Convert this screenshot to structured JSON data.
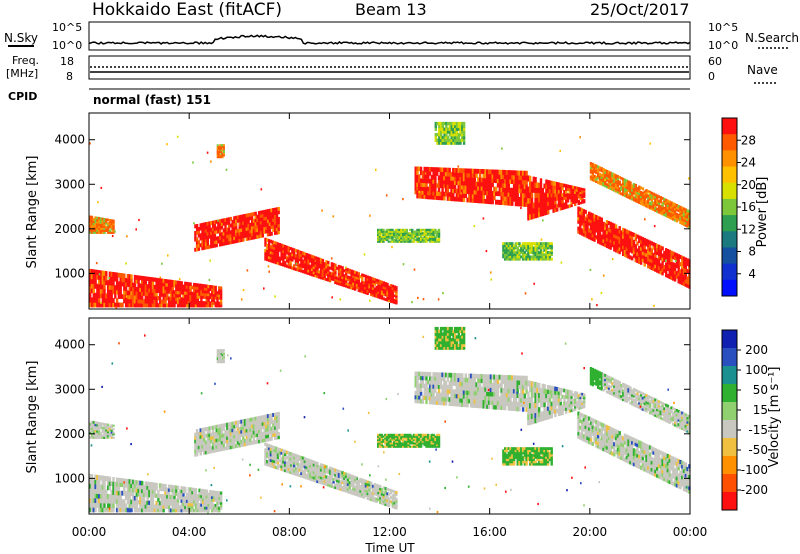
{
  "header": {
    "title": "Hokkaido East (fitACF)",
    "beam": "Beam 13",
    "date": "25/Oct/2017"
  },
  "top_panels": {
    "nsky": {
      "label": "N.Sky",
      "right_label": "N.Search",
      "ticks_left": [
        "10^5",
        "10^0"
      ],
      "ticks_right": [
        "10^5",
        "10^0"
      ]
    },
    "freq": {
      "label_line1": "Freq.",
      "label_line2": "[MHz]",
      "ticks_left": [
        "18",
        "8"
      ],
      "right_label": "Nave",
      "ticks_right": [
        "60",
        "0"
      ]
    },
    "cpid": {
      "label": "CPID",
      "value": "normal (fast) 151"
    }
  },
  "chart_data": [
    {
      "type": "heatmap",
      "name": "power",
      "ylabel": "Slant Range [km]",
      "ytick_labels": [
        "1000",
        "2000",
        "3000",
        "4000"
      ],
      "ylim": [
        200,
        4600
      ],
      "xlim": [
        0,
        24
      ],
      "x_tick_labels": [
        "00:00",
        "04:00",
        "08:00",
        "12:00",
        "16:00",
        "20:00",
        "00:00"
      ],
      "colorbar": {
        "label": "Power [dB]",
        "tick_labels": [
          "28",
          "24",
          "20",
          "16",
          "12",
          "8",
          "4"
        ],
        "colors": [
          "#ff1010",
          "#ff5a00",
          "#ff9000",
          "#ffc000",
          "#d8e000",
          "#7cc83a",
          "#2e9e50",
          "#1a7a80",
          "#1550a0",
          "#1030d0",
          "#0010ff"
        ]
      }
    },
    {
      "type": "heatmap",
      "name": "velocity",
      "ylabel": "Slant Range [km]",
      "ytick_labels": [
        "1000",
        "2000",
        "3000",
        "4000"
      ],
      "ylim": [
        200,
        4600
      ],
      "xlim": [
        0,
        24
      ],
      "x_tick_labels": [
        "00:00",
        "04:00",
        "08:00",
        "12:00",
        "16:00",
        "20:00",
        "00:00"
      ],
      "xlabel": "Time UT",
      "colorbar": {
        "label": "Velocity [m s⁻¹]",
        "tick_labels": [
          "200",
          "100",
          "50",
          "15",
          "-15",
          "-50",
          "-100",
          "-200"
        ],
        "colors": [
          "#1020b0",
          "#2a50c0",
          "#1a9090",
          "#30b030",
          "#90d070",
          "#c8c8c0",
          "#f0c040",
          "#ff9000",
          "#ff5000",
          "#ff1010"
        ]
      }
    }
  ]
}
